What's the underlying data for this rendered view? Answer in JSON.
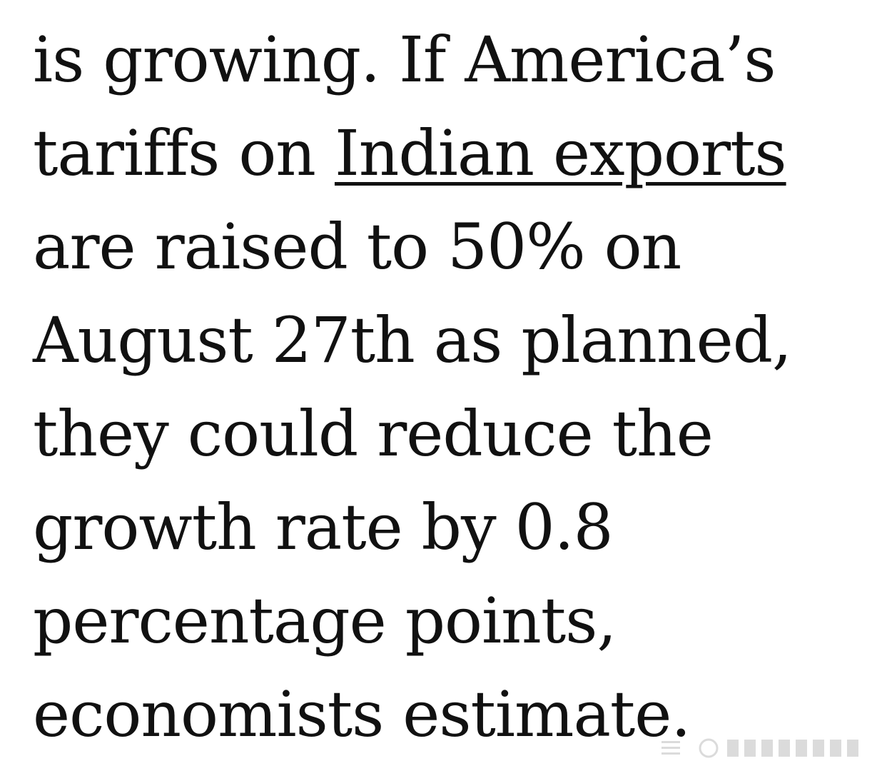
{
  "article": {
    "line1": "is growing. If America’s",
    "line2_before_link": "tariffs on ",
    "line2_link": "Indian exports",
    "line3": "are raised to 50% on",
    "line4": "August 27th as planned,",
    "line5": "they could reduce the",
    "line6": "growth rate by 0.8",
    "line7": "percentage points,",
    "line8": "economists estimate."
  },
  "colors": {
    "text": "#111111",
    "background": "#ffffff"
  }
}
